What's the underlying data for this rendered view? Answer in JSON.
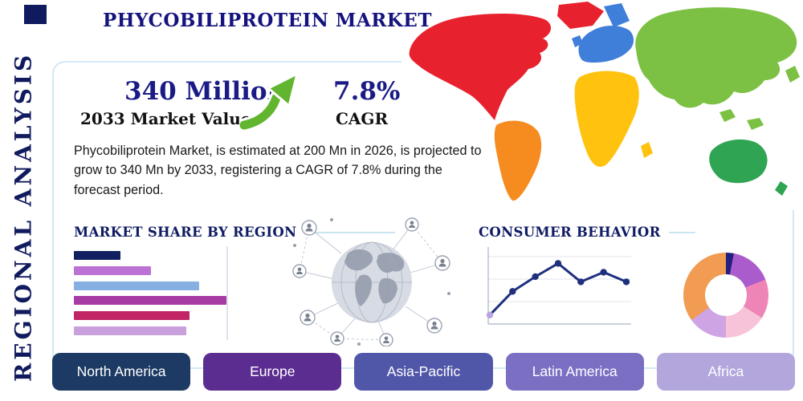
{
  "header": {
    "title": "PHYCOBILIPROTEIN MARKET",
    "side_label": "REGIONAL ANALYSIS"
  },
  "stats": {
    "market_value": "340 Million",
    "market_value_caption": "2033 Market Value",
    "cagr_value": "7.8%",
    "cagr_caption": "CAGR"
  },
  "description": "Phycobiliprotein Market, is estimated at 200 Mn in 2026, is projected to grow to 340 Mn by 2033, registering a CAGR of 7.8% during the forecast period.",
  "sections": {
    "market_share_title": "MARKET SHARE BY REGION",
    "consumer_behavior_title": "CONSUMER BEHAVIOR"
  },
  "region_buttons": [
    {
      "label": "North America",
      "color": "#1c3a63"
    },
    {
      "label": "Europe",
      "color": "#5c2d91"
    },
    {
      "label": "Asia-Pacific",
      "color": "#5157a8"
    },
    {
      "label": "Latin America",
      "color": "#7b6fc4"
    },
    {
      "label": "Africa",
      "color": "#b2a6dc"
    }
  ],
  "colors": {
    "accent_navy": "#15137e",
    "growth_arrow": "#62b52e",
    "heading_rule": "#c9e7f2",
    "card_border": "#d2e9f5"
  },
  "map_colors": {
    "north_america": "#e8212e",
    "south_america": "#f68b1f",
    "europe": "#3f7fd9",
    "africa": "#ffc20e",
    "asia": "#7cc144",
    "australia": "#2fa452"
  },
  "chart_data": [
    {
      "id": "market_share_bars",
      "type": "bar",
      "title": "MARKET SHARE BY REGION",
      "orientation": "horizontal",
      "values": [
        29,
        48,
        78,
        95,
        72,
        70
      ],
      "colors": [
        "#12205f",
        "#bb72d4",
        "#86b0e2",
        "#a63ba4",
        "#c12563",
        "#c9a0dc"
      ],
      "xlim": [
        0,
        100
      ],
      "note": "bars unlabeled in source image; values are relative lengths 0-100"
    },
    {
      "id": "consumer_behavior_line",
      "type": "line",
      "title": "CONSUMER BEHAVIOR",
      "x": [
        1,
        2,
        3,
        4,
        5,
        6,
        7
      ],
      "values": [
        10,
        42,
        62,
        80,
        55,
        68,
        55
      ],
      "ylim": [
        0,
        100
      ],
      "line_color": "#20307f",
      "first_marker_color": "#b9a3e2",
      "note": "axes unlabeled in source image; values are relative heights 0-100"
    },
    {
      "id": "region_donut",
      "type": "pie",
      "slices": [
        {
          "value": 3,
          "color": "#23207f"
        },
        {
          "value": 16,
          "color": "#ab5ccc"
        },
        {
          "value": 15,
          "color": "#ef85b6"
        },
        {
          "value": 16,
          "color": "#f6c3d8"
        },
        {
          "value": 15,
          "color": "#cfa4e4"
        },
        {
          "value": 35,
          "color": "#f29b52"
        }
      ],
      "note": "slices unlabeled in source image; values are relative angles"
    }
  ]
}
